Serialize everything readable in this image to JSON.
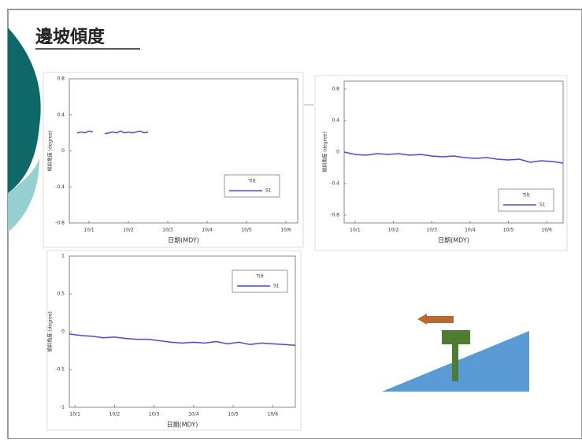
{
  "slide_title": "邊坡傾度",
  "chart_data": [
    {
      "type": "line",
      "xlabel": "日期(MDY)",
      "ylabel": "傾斜角度 (degree)",
      "legend_title": "Tilt",
      "x": [
        2,
        3,
        4,
        5,
        6,
        7,
        8,
        9,
        10,
        11,
        12,
        13,
        14,
        15,
        16,
        17,
        18,
        19,
        20
      ],
      "series": [
        {
          "name": "S1",
          "color": "#4a4adb",
          "values": [
            0.2,
            0.21,
            0.2,
            0.22,
            0.21,
            null,
            null,
            0.19,
            0.2,
            0.21,
            0.2,
            0.22,
            0.2,
            0.21,
            0.2,
            0.21,
            0.22,
            0.2,
            0.21
          ]
        }
      ],
      "xlim": [
        0,
        58
      ],
      "xticks": [
        {
          "value": 5,
          "label": "10/1"
        },
        {
          "value": 15,
          "label": "10/2"
        },
        {
          "value": 25,
          "label": "10/3"
        },
        {
          "value": 35,
          "label": "10/4"
        },
        {
          "value": 45,
          "label": "10/5"
        },
        {
          "value": 55,
          "label": "10/6"
        }
      ],
      "ylim": [
        -0.8,
        0.8
      ],
      "yticks": [
        -0.8,
        -0.4,
        0,
        0.4,
        0.8
      ]
    },
    {
      "type": "line",
      "xlabel": "日期(MDY)",
      "ylabel": "傾斜角度 (degree)",
      "legend_title": "Tilt",
      "x": [
        0,
        2,
        4,
        6,
        8,
        10,
        12,
        14,
        16,
        18,
        20,
        22,
        24,
        26,
        28,
        30,
        32,
        34,
        36,
        38,
        40
      ],
      "series": [
        {
          "name": "S1",
          "color": "#4a4adb",
          "values": [
            0,
            -0.03,
            -0.04,
            -0.02,
            -0.03,
            -0.02,
            -0.04,
            -0.03,
            -0.05,
            -0.06,
            -0.05,
            -0.07,
            -0.08,
            -0.07,
            -0.09,
            -0.1,
            -0.09,
            -0.13,
            -0.11,
            -0.12,
            -0.14
          ]
        }
      ],
      "xlim": [
        0,
        40
      ],
      "xticks": [
        {
          "value": 2,
          "label": "10/1"
        },
        {
          "value": 9,
          "label": "10/2"
        },
        {
          "value": 16,
          "label": "10/3"
        },
        {
          "value": 23,
          "label": "10/4"
        },
        {
          "value": 30,
          "label": "10/5"
        },
        {
          "value": 37,
          "label": "10/6"
        }
      ],
      "ylim": [
        -0.9,
        0.9
      ],
      "yticks": [
        -0.8,
        -0.4,
        0,
        0.4,
        0.8
      ]
    },
    {
      "type": "line",
      "xlabel": "日期(MDY)",
      "ylabel": "傾斜角度 (degree)",
      "legend_title": "Tilt",
      "x": [
        0,
        2,
        4,
        6,
        8,
        10,
        12,
        14,
        16,
        18,
        20,
        22,
        24,
        26,
        28,
        30,
        32,
        34,
        36,
        38,
        40
      ],
      "series": [
        {
          "name": "S1",
          "color": "#4a4adb",
          "values": [
            -0.03,
            -0.05,
            -0.06,
            -0.08,
            -0.07,
            -0.09,
            -0.1,
            -0.1,
            -0.12,
            -0.14,
            -0.15,
            -0.14,
            -0.15,
            -0.13,
            -0.16,
            -0.14,
            -0.17,
            -0.15,
            -0.16,
            -0.17,
            -0.18
          ]
        }
      ],
      "xlim": [
        0,
        40
      ],
      "xticks": [
        {
          "value": 1,
          "label": "10/1"
        },
        {
          "value": 8,
          "label": "10/2"
        },
        {
          "value": 15,
          "label": "10/3"
        },
        {
          "value": 22,
          "label": "10/4"
        },
        {
          "value": 29,
          "label": "10/5"
        },
        {
          "value": 36,
          "label": "10/6"
        }
      ],
      "ylim": [
        -1,
        1
      ],
      "yticks": [
        -1,
        -0.5,
        0,
        0.5,
        1
      ]
    }
  ]
}
